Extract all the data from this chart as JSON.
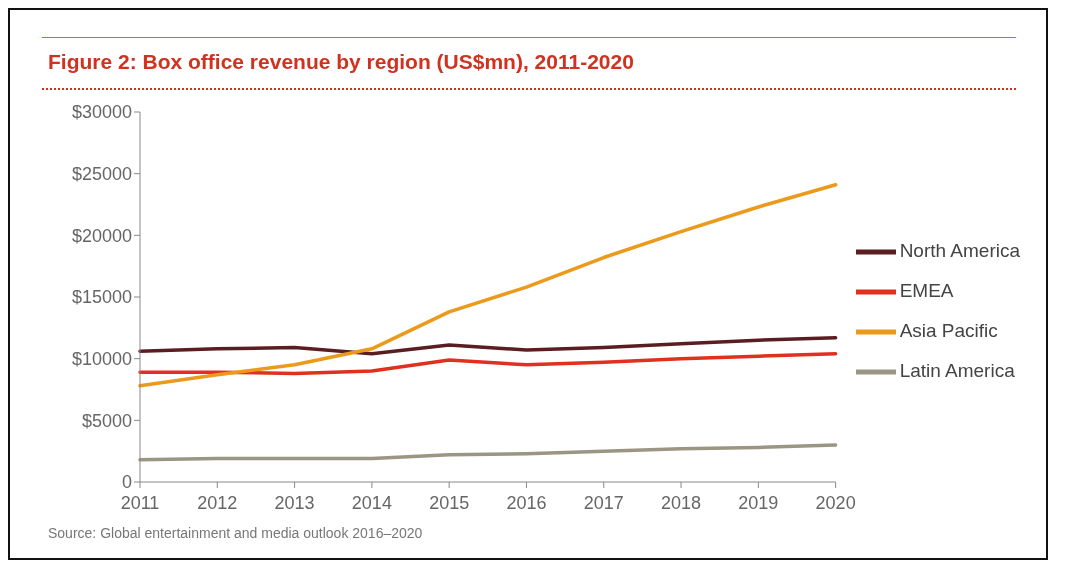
{
  "chart_data": {
    "type": "line",
    "title": "Figure 2: Box office revenue by region (US$mn), 2011-2020",
    "categories": [
      "2011",
      "2012",
      "2013",
      "2014",
      "2015",
      "2016",
      "2017",
      "2018",
      "2019",
      "2020"
    ],
    "series": [
      {
        "name": "North America",
        "color": "#5a1e22",
        "values": [
          10600,
          10800,
          10900,
          10400,
          11100,
          10700,
          10900,
          11200,
          11500,
          11700
        ]
      },
      {
        "name": "EMEA",
        "color": "#e0301e",
        "values": [
          8900,
          8900,
          8800,
          9000,
          9900,
          9500,
          9700,
          10000,
          10200,
          10400
        ]
      },
      {
        "name": "Asia Pacific",
        "color": "#eb9a1b",
        "values": [
          7800,
          8700,
          9500,
          10800,
          13800,
          15800,
          18200,
          20300,
          22300,
          24100
        ]
      },
      {
        "name": "Latin America",
        "color": "#9b9583",
        "values": [
          1800,
          1900,
          1900,
          1900,
          2200,
          2300,
          2500,
          2700,
          2800,
          3000
        ]
      }
    ],
    "ylim": [
      0,
      30000
    ],
    "yticks": [
      {
        "value": 0,
        "label": "0"
      },
      {
        "value": 5000,
        "label": "$5000"
      },
      {
        "value": 10000,
        "label": "$10000"
      },
      {
        "value": 15000,
        "label": "$15000"
      },
      {
        "value": 20000,
        "label": "$20000"
      },
      {
        "value": 25000,
        "label": "$25000"
      },
      {
        "value": 30000,
        "label": "$30000"
      }
    ],
    "grid": false,
    "legend": "right",
    "marker": "none",
    "line_style": "solid",
    "annotations": [
      "Source: Global entertainment and media outlook 2016–2020"
    ]
  }
}
